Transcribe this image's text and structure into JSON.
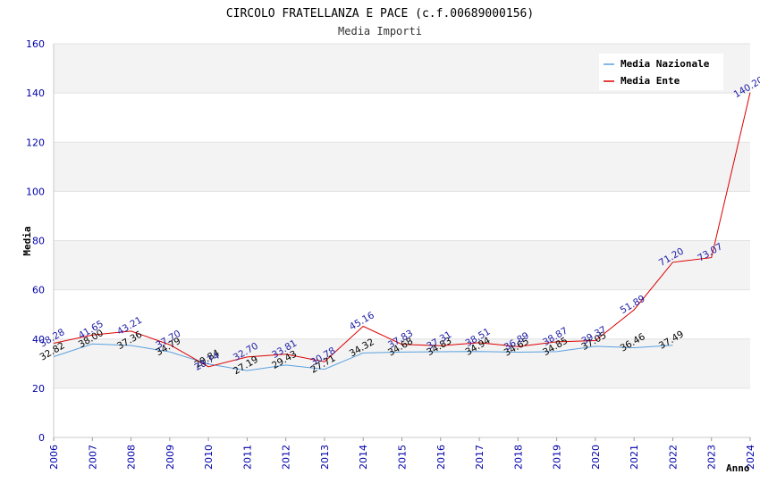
{
  "chart_data": {
    "type": "line",
    "title": "CIRCOLO FRATELLANZA E PACE (c.f.00689000156)",
    "subtitle": "Media Importi",
    "xlabel": "Anno",
    "ylabel": "Media",
    "ylim": [
      0,
      160
    ],
    "yticks": [
      0,
      20,
      40,
      60,
      80,
      100,
      120,
      140,
      160
    ],
    "categories": [
      "2006",
      "2007",
      "2008",
      "2009",
      "2010",
      "2011",
      "2012",
      "2013",
      "2014",
      "2015",
      "2016",
      "2017",
      "2018",
      "2019",
      "2020",
      "2021",
      "2022",
      "2023",
      "2024"
    ],
    "grid": true,
    "legend_position": "top-right",
    "series": [
      {
        "name": "Media Nazionale",
        "color": "#5aa0e0",
        "values": [
          32.82,
          38.0,
          37.36,
          34.79,
          29.84,
          27.19,
          29.43,
          27.71,
          34.32,
          34.68,
          34.83,
          34.94,
          34.65,
          34.85,
          37.05,
          36.46,
          37.49,
          null,
          null
        ],
        "labels": [
          "32.82",
          "38.00",
          "37.36",
          "34.79",
          "29.84",
          "27.19",
          "29.43",
          "27.71",
          "34.32",
          "34.68",
          "34.83",
          "34.94",
          "34.65",
          "34.85",
          "37.05",
          "36.46",
          "37.49",
          null,
          null
        ]
      },
      {
        "name": "Media Ente",
        "color": "#dd0000",
        "values": [
          38.28,
          41.65,
          43.21,
          37.7,
          28.74,
          32.7,
          33.81,
          30.78,
          45.16,
          37.83,
          37.31,
          38.51,
          36.89,
          38.87,
          39.37,
          51.89,
          71.2,
          73.07,
          140.2
        ],
        "labels": [
          "38.28",
          "41.65",
          "43.21",
          "37.70",
          "28.74",
          "32.70",
          "33.81",
          "30.78",
          "45.16",
          "37.83",
          "37.31",
          "38.51",
          "36.89",
          "38.87",
          "39.37",
          "51.89",
          "71.20",
          "73.07",
          "140.20"
        ]
      }
    ]
  }
}
